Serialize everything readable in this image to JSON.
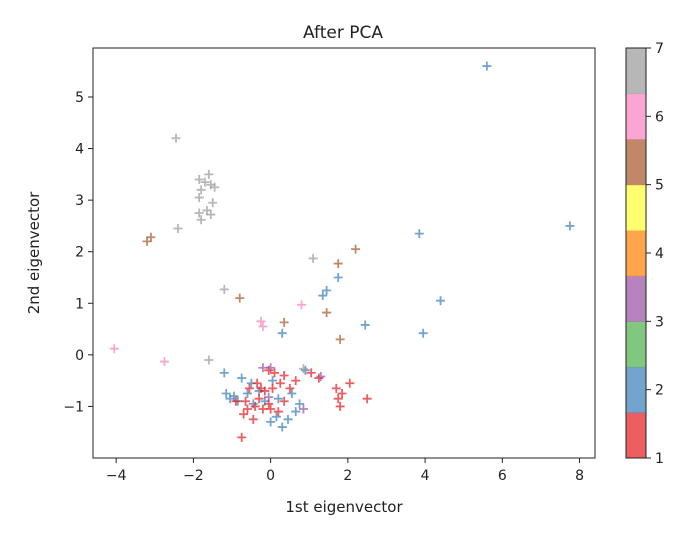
{
  "chart_data": {
    "type": "scatter",
    "title": "After PCA",
    "xlabel": "1st eigenvector",
    "ylabel": "2nd eigenvector",
    "xlim": [
      -4.6,
      8.4
    ],
    "ylim": [
      -2.0,
      5.95
    ],
    "x_ticks": [
      -4,
      -2,
      0,
      2,
      4,
      6,
      8
    ],
    "y_ticks": [
      -1,
      0,
      1,
      2,
      3,
      4,
      5
    ],
    "marker": "+",
    "grid": false,
    "colorbar": {
      "min": 1,
      "max": 7,
      "ticks": [
        1,
        2,
        3,
        4,
        5,
        6,
        7
      ],
      "colors": [
        "#e41a1c",
        "#377eb8",
        "#4daf4a",
        "#984ea3",
        "#ff7f00",
        "#ffff33",
        "#a65628",
        "#f781bf",
        "#999999"
      ]
    },
    "points": [
      {
        "x": 5.6,
        "y": 5.6,
        "c": 2
      },
      {
        "x": 7.75,
        "y": 2.5,
        "c": 2
      },
      {
        "x": 3.85,
        "y": 2.35,
        "c": 2
      },
      {
        "x": 4.4,
        "y": 1.05,
        "c": 2
      },
      {
        "x": 3.95,
        "y": 0.42,
        "c": 2
      },
      {
        "x": 2.45,
        "y": 0.58,
        "c": 2
      },
      {
        "x": 1.75,
        "y": 1.5,
        "c": 2
      },
      {
        "x": 1.45,
        "y": 1.25,
        "c": 2
      },
      {
        "x": 1.35,
        "y": 1.15,
        "c": 2
      },
      {
        "x": 0.3,
        "y": 0.42,
        "c": 2
      },
      {
        "x": -1.2,
        "y": -0.35,
        "c": 2
      },
      {
        "x": -1.15,
        "y": -0.75,
        "c": 2
      },
      {
        "x": -1.05,
        "y": -0.85,
        "c": 2
      },
      {
        "x": -0.95,
        "y": -0.8,
        "c": 2
      },
      {
        "x": -0.85,
        "y": -0.9,
        "c": 2
      },
      {
        "x": -0.75,
        "y": -0.45,
        "c": 2
      },
      {
        "x": -0.6,
        "y": -0.75,
        "c": 2
      },
      {
        "x": -0.45,
        "y": -0.95,
        "c": 2
      },
      {
        "x": -0.3,
        "y": -0.7,
        "c": 2
      },
      {
        "x": -0.15,
        "y": -0.9,
        "c": 2
      },
      {
        "x": 0.0,
        "y": -1.3,
        "c": 2
      },
      {
        "x": 0.15,
        "y": -1.2,
        "c": 2
      },
      {
        "x": 0.3,
        "y": -1.4,
        "c": 2
      },
      {
        "x": 0.45,
        "y": -1.25,
        "c": 2
      },
      {
        "x": 0.55,
        "y": -0.75,
        "c": 2
      },
      {
        "x": 0.65,
        "y": -1.1,
        "c": 2
      },
      {
        "x": 0.75,
        "y": -0.95,
        "c": 2
      },
      {
        "x": 0.9,
        "y": -0.3,
        "c": 2
      },
      {
        "x": -0.5,
        "y": -0.55,
        "c": 2
      },
      {
        "x": 0.05,
        "y": -0.5,
        "c": 2
      },
      {
        "x": 0.2,
        "y": -0.85,
        "c": 2
      },
      {
        "x": -0.05,
        "y": -0.95,
        "c": 1
      },
      {
        "x": -0.15,
        "y": -0.7,
        "c": 1
      },
      {
        "x": -0.3,
        "y": -0.85,
        "c": 1
      },
      {
        "x": -0.4,
        "y": -1.0,
        "c": 1
      },
      {
        "x": -0.55,
        "y": -0.65,
        "c": 1
      },
      {
        "x": -0.65,
        "y": -0.9,
        "c": 1
      },
      {
        "x": -0.7,
        "y": -1.15,
        "c": 1
      },
      {
        "x": -0.75,
        "y": -1.6,
        "c": 1
      },
      {
        "x": -0.45,
        "y": -1.25,
        "c": 1
      },
      {
        "x": -0.2,
        "y": -1.05,
        "c": 1
      },
      {
        "x": 0.05,
        "y": -0.65,
        "c": 1
      },
      {
        "x": 0.1,
        "y": -0.35,
        "c": 1
      },
      {
        "x": -0.05,
        "y": -0.3,
        "c": 1
      },
      {
        "x": 0.25,
        "y": -0.55,
        "c": 1
      },
      {
        "x": 0.35,
        "y": -0.4,
        "c": 1
      },
      {
        "x": 0.35,
        "y": -0.9,
        "c": 1
      },
      {
        "x": 0.5,
        "y": -0.65,
        "c": 1
      },
      {
        "x": 0.65,
        "y": -0.5,
        "c": 1
      },
      {
        "x": -0.35,
        "y": -0.55,
        "c": 1
      },
      {
        "x": -0.6,
        "y": -1.05,
        "c": 1
      },
      {
        "x": 0.0,
        "y": -1.05,
        "c": 1
      },
      {
        "x": 0.2,
        "y": -1.1,
        "c": 1
      },
      {
        "x": 1.05,
        "y": -0.35,
        "c": 1
      },
      {
        "x": 1.25,
        "y": -0.45,
        "c": 1
      },
      {
        "x": 1.7,
        "y": -0.65,
        "c": 1
      },
      {
        "x": 1.75,
        "y": -0.85,
        "c": 1
      },
      {
        "x": 1.8,
        "y": -1.0,
        "c": 1
      },
      {
        "x": 1.85,
        "y": -0.75,
        "c": 1
      },
      {
        "x": 2.05,
        "y": -0.55,
        "c": 1
      },
      {
        "x": 2.5,
        "y": -0.85,
        "c": 1
      },
      {
        "x": -0.9,
        "y": -0.9,
        "c": 1
      },
      {
        "x": -0.25,
        "y": -0.65,
        "c": 1
      },
      {
        "x": -0.2,
        "y": -0.25,
        "c": 3
      },
      {
        "x": 0.0,
        "y": -0.25,
        "c": 3
      },
      {
        "x": 1.3,
        "y": -0.42,
        "c": 3
      },
      {
        "x": 0.85,
        "y": -1.05,
        "c": 3
      },
      {
        "x": -0.05,
        "y": -0.82,
        "c": 3
      },
      {
        "x": -3.2,
        "y": 2.2,
        "c": 5
      },
      {
        "x": -3.1,
        "y": 2.28,
        "c": 5
      },
      {
        "x": 2.2,
        "y": 2.05,
        "c": 5
      },
      {
        "x": 1.75,
        "y": 1.77,
        "c": 5
      },
      {
        "x": -0.8,
        "y": 1.1,
        "c": 5
      },
      {
        "x": 1.45,
        "y": 0.82,
        "c": 5
      },
      {
        "x": 0.35,
        "y": 0.63,
        "c": 5
      },
      {
        "x": 1.8,
        "y": 0.3,
        "c": 5
      },
      {
        "x": -4.05,
        "y": 0.12,
        "c": 6
      },
      {
        "x": -2.75,
        "y": -0.13,
        "c": 6
      },
      {
        "x": -0.25,
        "y": 0.65,
        "c": 6
      },
      {
        "x": -0.2,
        "y": 0.55,
        "c": 6
      },
      {
        "x": 0.8,
        "y": 0.97,
        "c": 6
      },
      {
        "x": -2.45,
        "y": 4.2,
        "c": 7
      },
      {
        "x": -1.85,
        "y": 3.4,
        "c": 7
      },
      {
        "x": -1.7,
        "y": 3.35,
        "c": 7
      },
      {
        "x": -1.6,
        "y": 3.5,
        "c": 7
      },
      {
        "x": -1.55,
        "y": 3.3,
        "c": 7
      },
      {
        "x": -1.8,
        "y": 3.2,
        "c": 7
      },
      {
        "x": -1.45,
        "y": 3.25,
        "c": 7
      },
      {
        "x": -1.85,
        "y": 3.05,
        "c": 7
      },
      {
        "x": -1.5,
        "y": 2.95,
        "c": 7
      },
      {
        "x": -1.85,
        "y": 2.75,
        "c": 7
      },
      {
        "x": -1.65,
        "y": 2.8,
        "c": 7
      },
      {
        "x": -1.55,
        "y": 2.72,
        "c": 7
      },
      {
        "x": -2.4,
        "y": 2.45,
        "c": 7
      },
      {
        "x": -1.8,
        "y": 2.62,
        "c": 7
      },
      {
        "x": -1.2,
        "y": 1.27,
        "c": 7
      },
      {
        "x": 1.1,
        "y": 1.87,
        "c": 7
      },
      {
        "x": -1.6,
        "y": -0.1,
        "c": 7
      },
      {
        "x": 0.85,
        "y": -0.27,
        "c": 7
      }
    ]
  }
}
